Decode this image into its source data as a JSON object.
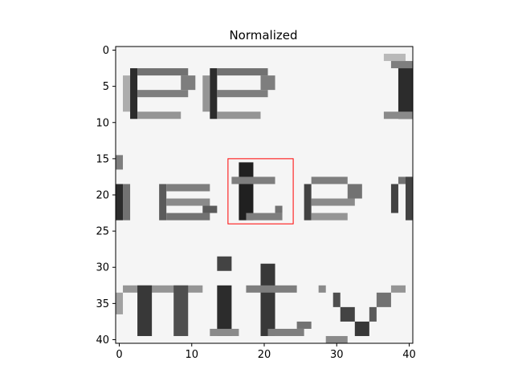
{
  "chart_data": {
    "type": "heatmap",
    "title": "Normalized",
    "xlabel": "",
    "ylabel": "",
    "colormap": "gray",
    "grid": false,
    "xlim": [
      -0.5,
      40.5
    ],
    "ylim": [
      40.5,
      -0.5
    ],
    "x_ticks": [
      0,
      10,
      20,
      30,
      40
    ],
    "y_ticks": [
      0,
      5,
      10,
      15,
      20,
      25,
      30,
      35,
      40
    ],
    "highlight_box": {
      "x": [
        15,
        24
      ],
      "y": [
        15,
        24
      ],
      "color": "#ff0000"
    },
    "image_shape": [
      41,
      41
    ]
  }
}
